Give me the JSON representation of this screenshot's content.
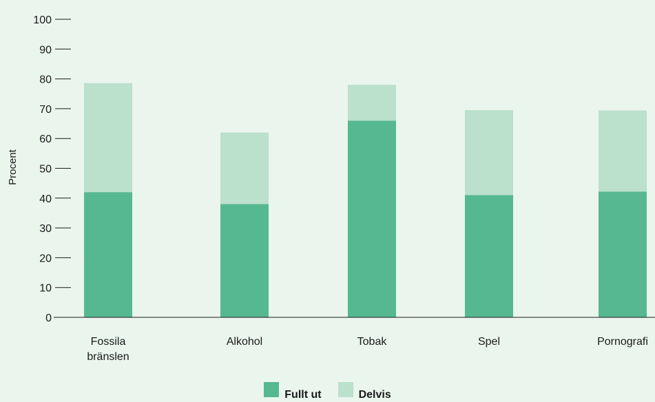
{
  "chart_data": {
    "type": "bar",
    "stacked": true,
    "categories": [
      [
        "Fossila",
        "bränslen"
      ],
      [
        "Alkohol"
      ],
      [
        "Tobak"
      ],
      [
        "Spel"
      ],
      [
        "Pornografi"
      ]
    ],
    "series": [
      {
        "name": "Fullt ut",
        "values": [
          42,
          38,
          66,
          41,
          42.2
        ],
        "color": "#56b890"
      },
      {
        "name": "Delvis",
        "values": [
          36.6,
          24,
          12,
          28.5,
          27.2
        ],
        "color": "#bbe0cc"
      }
    ],
    "title": "",
    "xlabel": "",
    "ylabel": "Procent",
    "ylim": [
      0,
      100
    ],
    "yticks": [
      0,
      10,
      20,
      30,
      40,
      50,
      60,
      70,
      80,
      90,
      100
    ],
    "grid": false,
    "legend_position": "bottom"
  }
}
